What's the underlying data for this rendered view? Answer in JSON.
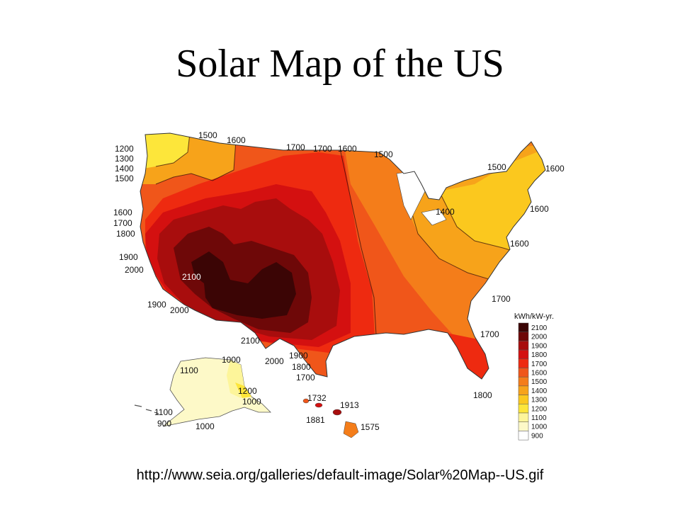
{
  "slide": {
    "title": "Solar Map of the US",
    "source_url": "http://www.seia.org/galleries/default-image/Solar%20Map--US.gif"
  },
  "map": {
    "legend": {
      "unit": "kWh/kW-yr.",
      "entries": [
        {
          "value": "2100",
          "color": "#3b0505"
        },
        {
          "value": "2000",
          "color": "#6e0808"
        },
        {
          "value": "1900",
          "color": "#a80d0d"
        },
        {
          "value": "1800",
          "color": "#d41010"
        },
        {
          "value": "1700",
          "color": "#ee2a10"
        },
        {
          "value": "1600",
          "color": "#f0561a"
        },
        {
          "value": "1500",
          "color": "#f47d1a"
        },
        {
          "value": "1400",
          "color": "#f7a31a"
        },
        {
          "value": "1300",
          "color": "#fbc81e"
        },
        {
          "value": "1200",
          "color": "#fde63a"
        },
        {
          "value": "1100",
          "color": "#fdf59a"
        },
        {
          "value": "1000",
          "color": "#fdf9c8"
        },
        {
          "value": "900",
          "color": "#ffffff"
        }
      ]
    },
    "contour_labels": {
      "l1200": "1200",
      "l1300": "1300",
      "l1400": "1400",
      "l1500w": "1500",
      "l1500n": "1500",
      "l1600n": "1600",
      "l1700a": "1700",
      "l1700b": "1700",
      "l1600c": "1600",
      "l1500c": "1500",
      "l1500ne": "1500",
      "l1600ne": "1600",
      "l1400gl": "1400",
      "l1600e1": "1600",
      "l1600e2": "1600",
      "l1600w": "1600",
      "l1700w": "1700",
      "l1800w": "1800",
      "l1900w": "1900",
      "l2000w": "2000",
      "l2100sw": "2100",
      "l1900s": "1900",
      "l2000s": "2000",
      "l2100s": "2100",
      "l2000tx": "2000",
      "l1900tx": "1900",
      "l1800tx": "1800",
      "l1700tx": "1700",
      "l1700se": "1700",
      "l1700fl": "1700",
      "l1800fl": "1800",
      "ak1000a": "1000",
      "ak1100a": "1100",
      "ak1200": "1200",
      "ak1000b": "1000",
      "ak1100b": "1100",
      "ak900": "900",
      "ak1000c": "1000",
      "hi1732": "1732",
      "hi1913": "1913",
      "hi1881": "1881",
      "hi1575": "1575"
    }
  }
}
